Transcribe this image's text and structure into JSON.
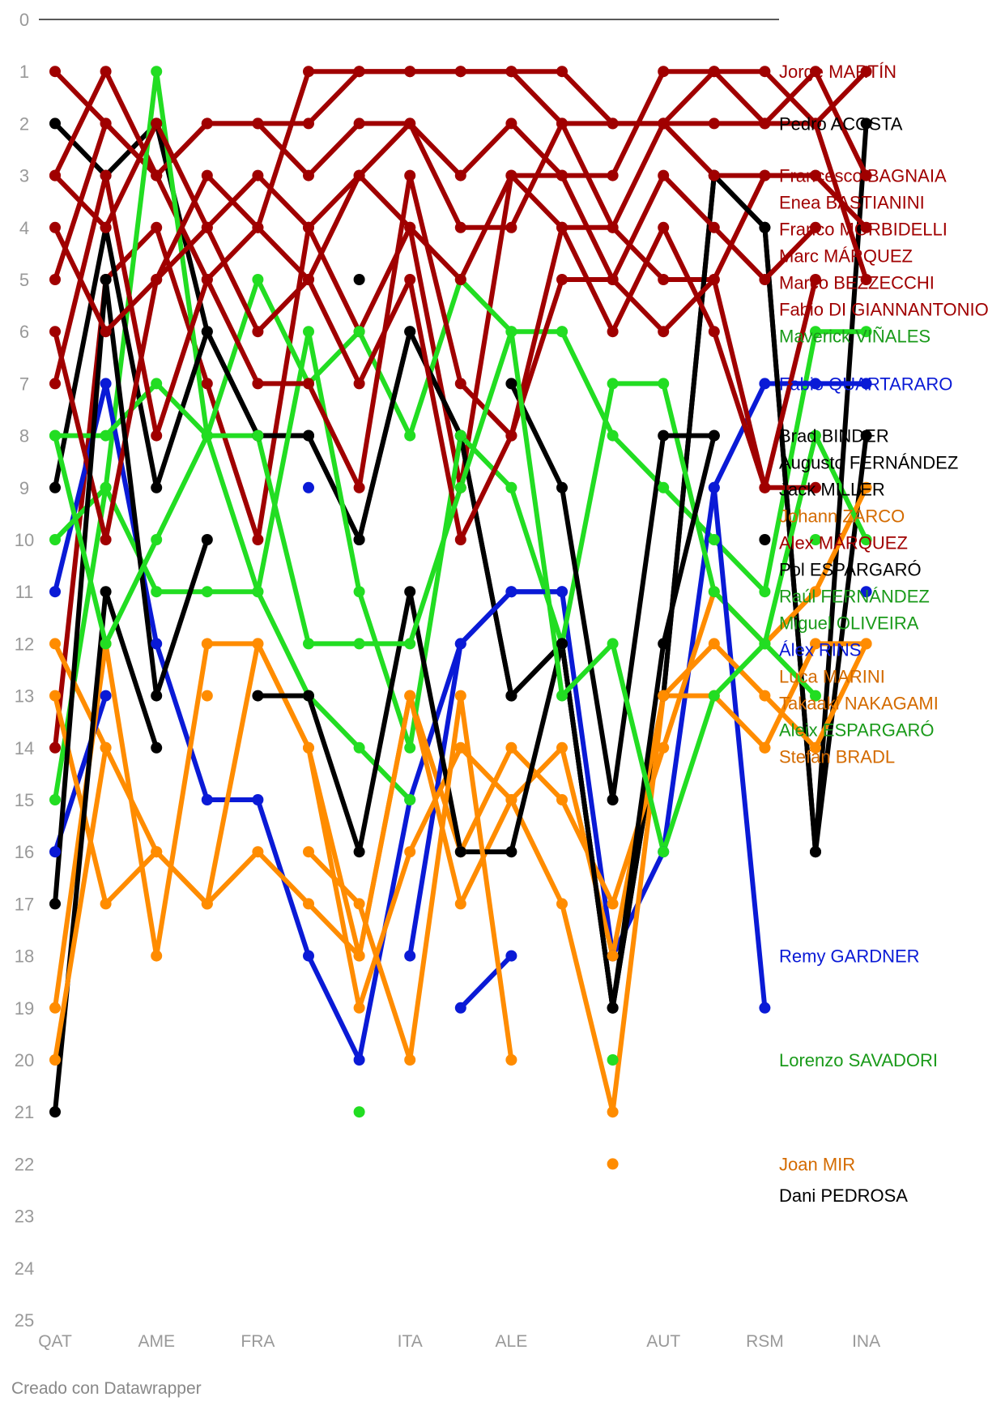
{
  "credit": "Creado con Datawrapper",
  "chart_data": {
    "type": "line",
    "title": "",
    "xlabel": "",
    "ylabel": "",
    "ylim": [
      25,
      0
    ],
    "y_ticks": [
      0,
      1,
      2,
      3,
      4,
      5,
      6,
      7,
      8,
      9,
      10,
      11,
      12,
      13,
      14,
      15,
      16,
      17,
      18,
      19,
      20,
      21,
      22,
      23,
      24,
      25
    ],
    "x": [
      "QAT",
      "R2",
      "AME",
      "R4",
      "FRA",
      "R6",
      "R7",
      "ITA",
      "R9",
      "ALE",
      "R11",
      "R12",
      "AUT",
      "R14",
      "RSM",
      "R16",
      "INA"
    ],
    "x_tick_labels": [
      "QAT",
      "",
      "AME",
      "",
      "FRA",
      "",
      "",
      "ITA",
      "",
      "ALE",
      "",
      "",
      "AUT",
      "",
      "RSM",
      "",
      "INA"
    ],
    "colors": {
      "ducati": "#a00000",
      "aprilia": "#22dd22",
      "yamaha": "#0a1ad6",
      "ktm": "#000000",
      "honda": "#ff8c00"
    },
    "series": [
      {
        "name": "Jorge MARTÍN",
        "color": "#a00000",
        "label_color": "#a00000",
        "values": [
          1,
          2,
          3,
          2,
          2,
          2,
          1,
          1,
          1,
          1,
          1,
          2,
          2,
          1,
          1,
          2,
          1
        ]
      },
      {
        "name": "Pedro ACOSTA",
        "color": "#000000",
        "label_color": "#000000",
        "values": [
          2,
          3,
          2,
          6,
          8,
          8,
          10,
          6,
          8,
          13,
          12,
          19,
          13,
          3,
          4,
          16,
          2
        ]
      },
      {
        "name": "Francesco BAGNAIA",
        "color": "#a00000",
        "label_color": "#a00000",
        "values": [
          3,
          1,
          3,
          5,
          4,
          1,
          1,
          1,
          1,
          1,
          2,
          2,
          2,
          2,
          2,
          1,
          3
        ]
      },
      {
        "name": "Franco MORBIDELLI",
        "color": "#a00000",
        "label_color": "#a00000",
        "values": [
          14,
          5,
          4,
          7,
          10,
          4,
          6,
          4,
          9,
          3,
          4,
          4,
          5,
          5,
          3,
          3,
          4
        ]
      },
      {
        "name": "Marco BEZZECCHI",
        "color": "#a00000",
        "label_color": "#a00000",
        "values": [
          5,
          2,
          3,
          2,
          2,
          3,
          2,
          2,
          3,
          2,
          3,
          3,
          1,
          1,
          2,
          2,
          5
        ]
      },
      {
        "name": "Maverick VIÑALES",
        "color": "#22dd22",
        "label_color": "#1a9a1a",
        "values": [
          15,
          9,
          1,
          8,
          5,
          7,
          6,
          8,
          5,
          6,
          6,
          8,
          9,
          10,
          11,
          6,
          6
        ]
      },
      {
        "name": "Fabio QUARTARARO",
        "color": "#0a1ad6",
        "label_color": "#0a1ad6",
        "values": [
          11,
          7,
          12,
          15,
          15,
          18,
          20,
          15,
          12,
          11,
          11,
          18,
          16,
          9,
          7,
          7,
          7
        ]
      },
      {
        "name": "Brad BINDER",
        "color": "#000000",
        "label_color": "#000000",
        "values": [
          9,
          4,
          9,
          6,
          8,
          8,
          10,
          6,
          8,
          13,
          12,
          19,
          13,
          3,
          4,
          16,
          8
        ]
      },
      {
        "name": "Johann ZARCO",
        "color": "#ff8c00",
        "label_color": "#d46b00",
        "values": [
          12,
          14,
          16,
          17,
          12,
          14,
          18,
          13,
          16,
          14,
          15,
          17,
          14,
          11,
          12,
          11,
          9
        ]
      },
      {
        "name": "Pol ESPARGARÓ",
        "color": "#000000",
        "label_color": "#000000",
        "values": [
          null,
          null,
          null,
          null,
          null,
          null,
          null,
          null,
          null,
          null,
          null,
          null,
          null,
          null,
          10,
          null,
          null
        ]
      },
      {
        "name": "Raúl FERNÁNDEZ",
        "color": "#22dd22",
        "label_color": "#1a9a1a",
        "values": [
          10,
          9,
          11,
          11,
          11,
          6,
          11,
          14,
          8,
          9,
          12,
          7,
          7,
          11,
          12,
          8,
          10
        ]
      },
      {
        "name": "Miguel OLIVEIRA",
        "color": "#22dd22",
        "label_color": "#1a9a1a",
        "values": [
          8,
          8,
          7,
          8,
          11,
          13,
          14,
          15,
          null,
          null,
          6,
          null,
          null,
          null,
          null,
          10,
          null
        ]
      },
      {
        "name": "Álex RINS",
        "color": "#0a1ad6",
        "label_color": "#0a1ad6",
        "values": [
          16,
          13,
          null,
          null,
          null,
          9,
          null,
          18,
          12,
          11,
          11,
          null,
          null,
          9,
          19,
          null,
          11
        ]
      },
      {
        "name": "Luca MARINI",
        "color": "#ff8c00",
        "label_color": "#d46b00",
        "values": [
          19,
          12,
          18,
          12,
          12,
          14,
          19,
          16,
          14,
          15,
          14,
          18,
          13,
          13,
          14,
          12,
          12
        ]
      },
      {
        "name": "Takaaki NAKAGAMI",
        "color": "#ff8c00",
        "label_color": "#d46b00",
        "values": [
          13,
          17,
          16,
          17,
          16,
          17,
          18,
          13,
          17,
          15,
          17,
          21,
          13,
          12,
          13,
          14,
          12
        ]
      },
      {
        "name": "Stefan BRADL",
        "color": "#ff8c00",
        "label_color": "#d46b00",
        "values": [
          null,
          null,
          null,
          null,
          null,
          null,
          null,
          null,
          null,
          null,
          null,
          null,
          null,
          null,
          14,
          null,
          null
        ]
      },
      {
        "name": "Remy GARDNER",
        "color": "#0a1ad6",
        "label_color": "#0a1ad6",
        "values": [
          null,
          null,
          null,
          null,
          null,
          null,
          null,
          null,
          19,
          18,
          null,
          null,
          null,
          null,
          null,
          null,
          null
        ]
      },
      {
        "name": "Lorenzo SAVADORI",
        "color": "#22dd22",
        "label_color": "#1a9a1a",
        "values": [
          null,
          null,
          null,
          null,
          null,
          null,
          21,
          null,
          null,
          null,
          null,
          20,
          null,
          null,
          null,
          null,
          null
        ]
      },
      {
        "name": "Dani PEDROSA",
        "color": "#000000",
        "label_color": "#000000",
        "values": [
          null,
          null,
          null,
          null,
          null,
          null,
          null,
          null,
          null,
          null,
          null,
          null,
          null,
          null,
          null,
          null,
          null
        ]
      },
      {
        "name": "Augusto FERNÁNDEZ",
        "color": "#000000",
        "label_color": "#000000",
        "values": [
          21,
          11,
          14,
          null,
          13,
          13,
          16,
          11,
          16,
          16,
          12,
          19,
          12,
          8,
          null,
          null,
          null
        ]
      },
      {
        "name": "Fabio DI GIANNANTONIO",
        "color": "#a00000",
        "label_color": "#a00000",
        "values": [
          6,
          10,
          5,
          4,
          6,
          5,
          7,
          5,
          10,
          8,
          5,
          5,
          6,
          5,
          9,
          5,
          null
        ]
      },
      {
        "name": "Jack MILLER",
        "color": "#000000",
        "label_color": "#000000",
        "values": [
          17,
          5,
          13,
          10,
          null,
          null,
          5,
          null,
          null,
          7,
          9,
          15,
          8,
          8,
          null,
          null,
          null
        ]
      },
      {
        "name": "Marc MÁRQUEZ",
        "color": "#a00000",
        "label_color": "#a00000",
        "values": [
          4,
          6,
          5,
          3,
          4,
          5,
          3,
          4,
          5,
          3,
          3,
          5,
          3,
          4,
          5,
          4,
          null
        ]
      },
      {
        "name": "Alex MÁRQUEZ",
        "color": "#a00000",
        "label_color": "#a00000",
        "values": [
          7,
          3,
          8,
          5,
          7,
          7,
          9,
          3,
          7,
          8,
          4,
          6,
          4,
          6,
          9,
          9,
          null
        ]
      },
      {
        "name": "Enea BASTIANINI",
        "color": "#a00000",
        "label_color": "#a00000",
        "values": [
          3,
          4,
          2,
          4,
          3,
          4,
          3,
          2,
          4,
          4,
          2,
          4,
          2,
          3,
          3,
          3,
          null
        ]
      },
      {
        "name": "Joan MIR",
        "color": "#ff8c00",
        "label_color": "#d46b00",
        "values": [
          20,
          14,
          null,
          13,
          null,
          16,
          17,
          20,
          13,
          20,
          null,
          22,
          null,
          null,
          null,
          null,
          null
        ]
      },
      {
        "name": "Aleix ESPARGARÓ",
        "color": "#22dd22",
        "label_color": "#1a9a1a",
        "values": [
          8,
          12,
          10,
          8,
          8,
          12,
          12,
          12,
          9,
          6,
          13,
          12,
          16,
          13,
          12,
          13,
          null
        ]
      }
    ]
  }
}
